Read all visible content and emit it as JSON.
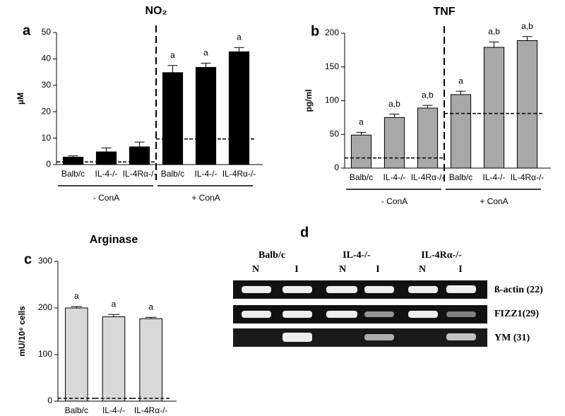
{
  "chart_data": [
    {
      "type": "bar",
      "panel": "a",
      "title": "NO₂",
      "y_label": "µM",
      "categories": [
        "Balb/c",
        "IL-4-/-",
        "IL-4Rα-/-",
        "Balb/c",
        "IL-4-/-",
        "IL-4Rα-/-"
      ],
      "values": [
        2.8,
        4.8,
        6.7,
        34.8,
        36.8,
        42.7
      ],
      "errors": [
        0.5,
        1.5,
        1.8,
        2.7,
        1.6,
        1.6
      ],
      "value_labels": [
        null,
        null,
        null,
        "a",
        "a",
        "a"
      ],
      "reference_values": [
        1,
        1,
        1,
        9.7,
        9.7,
        9.7
      ],
      "group_labels": [
        "- ConA",
        "+ ConA"
      ],
      "color": "#000000",
      "ylim": [
        0,
        50
      ],
      "yticks": [
        0,
        10,
        20,
        30,
        40,
        50
      ]
    },
    {
      "type": "bar",
      "panel": "b",
      "title": "TNF",
      "y_label": "pg/ml",
      "categories": [
        "Balb/c",
        "IL-4-/-",
        "IL-4Rα-/-",
        "Balb/c",
        "IL-4-/-",
        "IL-4Rα-/-"
      ],
      "values": [
        49,
        75,
        89,
        109,
        179,
        189
      ],
      "errors": [
        4,
        5,
        4,
        5,
        8,
        6
      ],
      "value_labels": [
        "a",
        "a,b",
        "a,b",
        "a",
        "a,b",
        "a,b"
      ],
      "reference_values": [
        15,
        15,
        15,
        81,
        81,
        81
      ],
      "group_labels": [
        "- ConA",
        "+ ConA"
      ],
      "color": "#a8a8a8",
      "ylim": [
        0,
        200
      ],
      "yticks": [
        0,
        50,
        100,
        150,
        200
      ]
    },
    {
      "type": "bar",
      "panel": "c",
      "title": "Arginase",
      "y_label": "mU/10⁶ cells",
      "categories": [
        "Balb/c",
        "IL-4-/-",
        "IL-4Rα-/-"
      ],
      "values": [
        200,
        181,
        177
      ],
      "errors": [
        3,
        5,
        3
      ],
      "value_labels": [
        "a",
        "a",
        "a"
      ],
      "reference_values": [
        6,
        6,
        6
      ],
      "color": "#d8d8d8",
      "ylim": [
        0,
        300
      ],
      "yticks": [
        0,
        100,
        200,
        300
      ]
    }
  ],
  "gel": {
    "panel": "d",
    "groups": [
      "Balb/c",
      "IL-4-/-",
      "IL-4Rα-/-"
    ],
    "lanes": [
      "N",
      "I",
      "N",
      "I",
      "N",
      "I"
    ],
    "rows": [
      "ß-actin (22)",
      "FIZZ1(29)",
      "YM (31)"
    ]
  }
}
